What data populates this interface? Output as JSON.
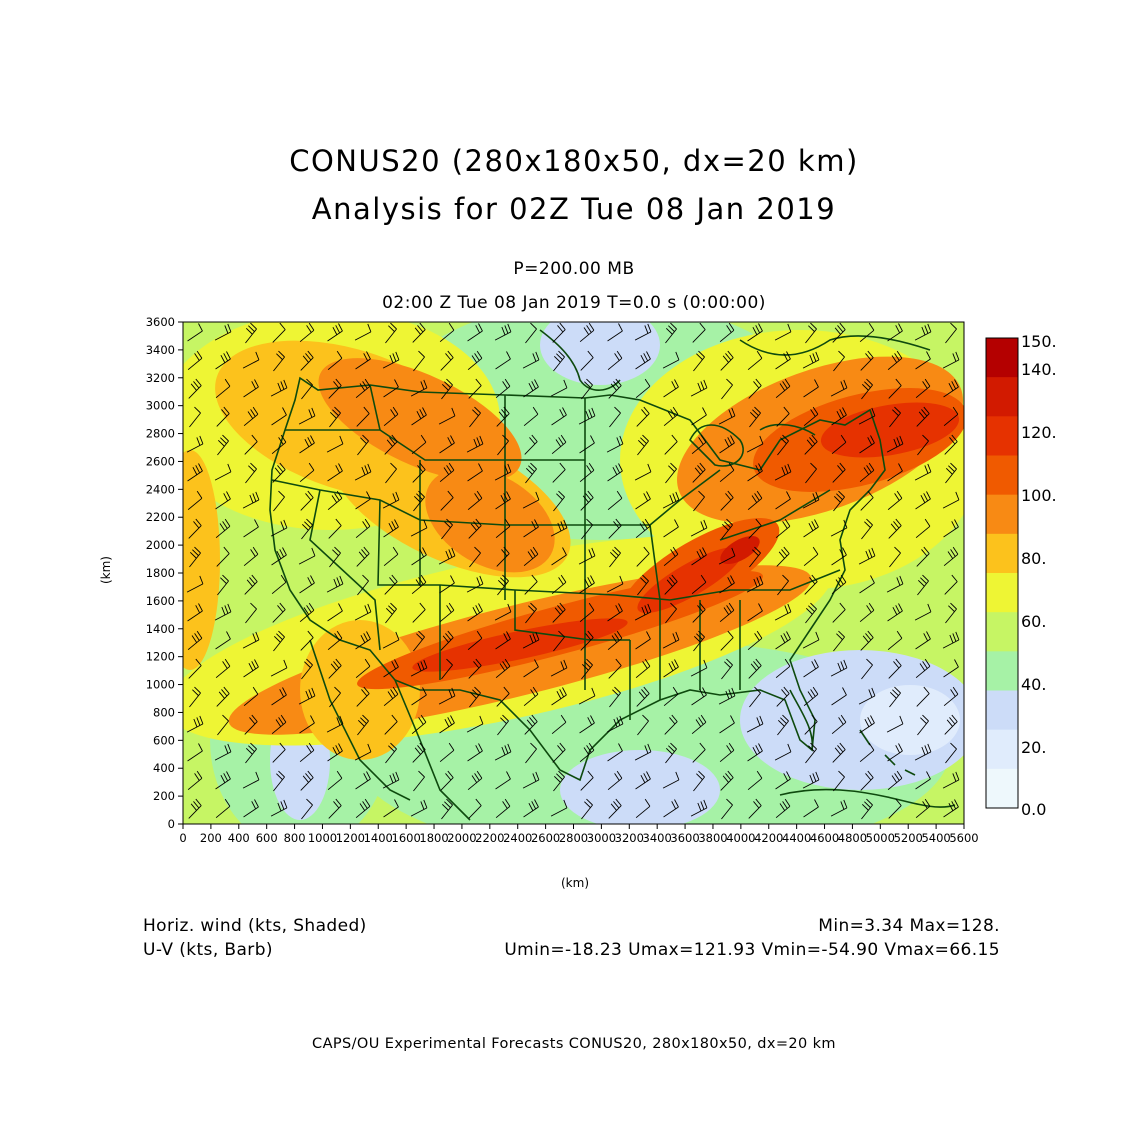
{
  "title_line1": "CONUS20 (280x180x50, dx=20 km)",
  "title_line2": "Analysis for 02Z Tue 08 Jan 2019",
  "pressure_label": "P=200.00 MB",
  "time_label": "02:00 Z Tue 08 Jan 2019    T=0.0 s (0:00:00)",
  "y_axis_label": "(km)",
  "x_axis_label": "(km)",
  "x_ticks": [
    "0",
    "200",
    "400",
    "600",
    "800",
    "1000",
    "1200",
    "1400",
    "1600",
    "1800",
    "2000",
    "2200",
    "2400",
    "2600",
    "2800",
    "3000",
    "3200",
    "3400",
    "3600",
    "3800",
    "4000",
    "4200",
    "4400",
    "4600",
    "4800",
    "5000",
    "5200",
    "5400",
    "5600"
  ],
  "y_ticks": [
    "0",
    "200",
    "400",
    "600",
    "800",
    "1000",
    "1200",
    "1400",
    "1600",
    "1800",
    "2000",
    "2200",
    "2400",
    "2600",
    "2800",
    "3000",
    "3200",
    "3400",
    "3600"
  ],
  "colorbar": {
    "labels": [
      "150.",
      "140.",
      "120.",
      "100.",
      "80.",
      "60.",
      "40.",
      "20.",
      "0.0"
    ],
    "colors": [
      "#b40000",
      "#d21a00",
      "#e63200",
      "#f05a00",
      "#f88a14",
      "#fcc21c",
      "#eef534",
      "#c6f564",
      "#a6f2a6",
      "#ccdcf8",
      "#e0ecfc",
      "#eef8fc"
    ]
  },
  "legend": {
    "shaded_label": "Horiz. wind (kts, Shaded)",
    "barb_label": "U-V (kts, Barb)",
    "minmax": "Min=3.34 Max=128.",
    "uv_stats": "Umin=-18.23 Umax=121.93 Vmin=-54.90 Vmax=66.15"
  },
  "credit": "CAPS/OU Experimental Forecasts   CONUS20, 280x180x50, dx=20 km",
  "colors": {
    "boundary": "#0e4a0e",
    "barb": "#000000"
  }
}
